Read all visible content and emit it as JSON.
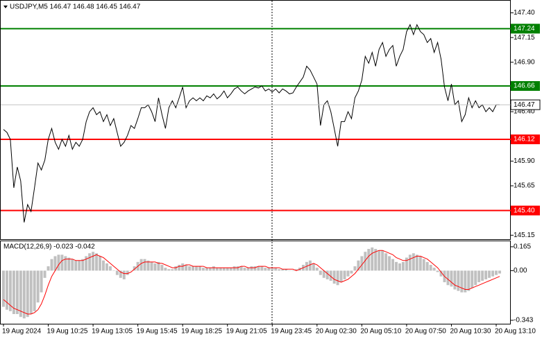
{
  "chart_data": [
    {
      "type": "line",
      "title": "USDJPY,M5  146.47 146.48 146.45 146.47",
      "color": "#000000",
      "values": [
        146.22,
        146.19,
        146.12,
        145.63,
        145.84,
        145.7,
        145.28,
        145.46,
        145.39,
        145.63,
        145.88,
        145.81,
        145.91,
        146.12,
        146.23,
        146.09,
        146.02,
        146.12,
        146.05,
        146.16,
        146.02,
        146.09,
        146.05,
        146.12,
        146.3,
        146.4,
        146.44,
        146.37,
        146.4,
        146.3,
        146.37,
        146.26,
        146.33,
        146.19,
        146.05,
        146.09,
        146.16,
        146.26,
        146.23,
        146.33,
        146.44,
        146.44,
        146.47,
        146.4,
        146.3,
        146.54,
        146.37,
        146.23,
        146.44,
        146.51,
        146.44,
        146.54,
        146.65,
        146.44,
        146.51,
        146.54,
        146.51,
        146.54,
        146.51,
        146.56,
        146.54,
        146.58,
        146.53,
        146.56,
        146.61,
        146.54,
        146.58,
        146.63,
        146.65,
        146.61,
        146.58,
        146.61,
        146.63,
        146.65,
        146.64,
        146.66,
        146.61,
        146.63,
        146.6,
        146.63,
        146.59,
        146.63,
        146.61,
        146.58,
        146.59,
        146.65,
        146.7,
        146.75,
        146.86,
        146.82,
        146.75,
        146.68,
        146.26,
        146.47,
        146.51,
        146.4,
        146.23,
        146.05,
        146.3,
        146.3,
        146.4,
        146.33,
        146.54,
        146.61,
        146.72,
        146.96,
        146.89,
        147.0,
        146.86,
        147.03,
        147.1,
        146.96,
        147.03,
        147.07,
        146.86,
        146.96,
        147.03,
        147.21,
        147.28,
        147.18,
        147.28,
        147.21,
        147.18,
        147.1,
        147.14,
        147.0,
        147.1,
        146.93,
        146.65,
        146.51,
        146.68,
        146.47,
        146.51,
        146.3,
        146.37,
        146.54,
        146.44,
        146.51,
        146.44,
        146.47,
        146.4,
        146.44,
        146.4,
        146.47,
        146.47
      ],
      "ylim": [
        145.11,
        147.53
      ],
      "yticks": [
        {
          "value": 147.4,
          "label": "147.40"
        },
        147.15,
        {
          "value": 146.9,
          "label": "146.90"
        },
        {
          "value": 146.4,
          "label": "146.40"
        },
        {
          "value": 145.9,
          "label": "145.90"
        },
        145.65,
        145.15
      ],
      "levels": {
        "values": [
          147.24,
          146.66,
          146.12,
          145.4
        ],
        "value_labels": [
          "147.24",
          "146.66",
          "146.12",
          "145.40"
        ],
        "colors": [
          "#008000",
          "#008000",
          "#ff0000",
          "#ff0000"
        ]
      },
      "last_price": 146.47
    },
    {
      "type": "macd",
      "title": "MACD(12,26,9) -0.023 -0.042",
      "categories": [
        "19 Aug 2024",
        null,
        null,
        null,
        null,
        null,
        null,
        null,
        null,
        null,
        null,
        null,
        null,
        "19 Aug 10:25",
        null,
        null,
        null,
        null,
        null,
        null,
        null,
        null,
        null,
        null,
        null,
        null,
        "19 Aug 13:05",
        null,
        null,
        null,
        null,
        null,
        null,
        null,
        null,
        null,
        null,
        null,
        null,
        "19 Aug 15:45",
        null,
        null,
        null,
        null,
        null,
        null,
        null,
        null,
        null,
        null,
        null,
        null,
        "19 Aug 18:25",
        null,
        null,
        null,
        null,
        null,
        null,
        null,
        null,
        null,
        null,
        null,
        null,
        "19 Aug 21:05",
        null,
        null,
        null,
        null,
        null,
        null,
        null,
        null,
        null,
        null,
        null,
        null,
        "19 Aug 23:45",
        null,
        null,
        null,
        null,
        null,
        null,
        null,
        null,
        null,
        null,
        null,
        null,
        "20 Aug 02:30",
        null,
        null,
        null,
        null,
        null,
        null,
        null,
        null,
        null,
        null,
        null,
        null,
        "20 Aug 05:10",
        null,
        null,
        null,
        null,
        null,
        null,
        null,
        null,
        null,
        null,
        null,
        null,
        "20 Aug 07:50",
        null,
        null,
        null,
        null,
        null,
        null,
        null,
        null,
        null,
        null,
        null,
        null,
        "20 Aug 10:30",
        null,
        null,
        null,
        null,
        null,
        null,
        null,
        null,
        null,
        null,
        null,
        null,
        "20 Aug 13:10",
        null
      ],
      "histogram": {
        "color": "#c0c0c0",
        "values": [
          -0.25,
          -0.27,
          -0.28,
          -0.3,
          -0.3,
          -0.32,
          -0.33,
          -0.32,
          -0.3,
          -0.28,
          -0.22,
          -0.15,
          -0.05,
          0.03,
          0.08,
          0.1,
          0.11,
          0.11,
          0.1,
          0.09,
          0.08,
          0.07,
          0.07,
          0.08,
          0.1,
          0.12,
          0.13,
          0.12,
          0.1,
          0.07,
          0.05,
          0.03,
          0,
          -0.03,
          -0.05,
          -0.06,
          -0.03,
          0,
          0.03,
          0.06,
          0.08,
          0.08,
          0.07,
          0.06,
          0.05,
          0.06,
          0.04,
          0.02,
          0.01,
          0.01,
          0.03,
          0.04,
          0.05,
          0.04,
          0.03,
          0.03,
          0.03,
          0.03,
          0.02,
          0.02,
          0.02,
          0.03,
          0.02,
          0.02,
          0.02,
          0.02,
          0.02,
          0.03,
          0.03,
          0.03,
          0.02,
          0.02,
          0.03,
          0.03,
          0.03,
          0.03,
          0.02,
          0.02,
          0.02,
          0.02,
          0.01,
          0.01,
          0.01,
          0,
          0,
          0.01,
          0.02,
          0.04,
          0.06,
          0.07,
          0.05,
          0.02,
          -0.03,
          -0.05,
          -0.06,
          -0.07,
          -0.09,
          -0.1,
          -0.08,
          -0.06,
          -0.04,
          -0.02,
          0.03,
          0.07,
          0.1,
          0.13,
          0.15,
          0.16,
          0.15,
          0.14,
          0.14,
          0.12,
          0.1,
          0.08,
          0.06,
          0.05,
          0.06,
          0.09,
          0.11,
          0.12,
          0.11,
          0.1,
          0.08,
          0.06,
          0.04,
          0.02,
          -0.01,
          -0.04,
          -0.08,
          -0.1,
          -0.11,
          -0.13,
          -0.14,
          -0.15,
          -0.15,
          -0.14,
          -0.12,
          -0.1,
          -0.08,
          -0.07,
          -0.06,
          -0.05,
          -0.04,
          -0.03,
          -0.02
        ]
      },
      "signal": {
        "color": "#ff0000",
        "values": [
          -0.2,
          -0.22,
          -0.24,
          -0.26,
          -0.27,
          -0.28,
          -0.29,
          -0.3,
          -0.3,
          -0.29,
          -0.27,
          -0.23,
          -0.17,
          -0.1,
          -0.04,
          0,
          0.04,
          0.07,
          0.08,
          0.08,
          0.08,
          0.07,
          0.07,
          0.07,
          0.08,
          0.09,
          0.1,
          0.11,
          0.1,
          0.09,
          0.07,
          0.05,
          0.03,
          0.01,
          -0.01,
          -0.02,
          -0.02,
          -0.01,
          0.01,
          0.03,
          0.05,
          0.06,
          0.06,
          0.06,
          0.06,
          0.05,
          0.05,
          0.04,
          0.03,
          0.02,
          0.02,
          0.03,
          0.03,
          0.04,
          0.04,
          0.03,
          0.03,
          0.03,
          0.03,
          0.02,
          0.02,
          0.02,
          0.02,
          0.02,
          0.02,
          0.02,
          0.02,
          0.02,
          0.02,
          0.03,
          0.03,
          0.02,
          0.02,
          0.02,
          0.03,
          0.03,
          0.03,
          0.02,
          0.02,
          0.02,
          0.02,
          0.01,
          0.01,
          0.01,
          0.01,
          0,
          0.01,
          0.02,
          0.03,
          0.04,
          0.05,
          0.04,
          0.02,
          0,
          -0.02,
          -0.04,
          -0.06,
          -0.07,
          -0.08,
          -0.07,
          -0.06,
          -0.04,
          -0.02,
          0.01,
          0.04,
          0.07,
          0.1,
          0.12,
          0.13,
          0.14,
          0.14,
          0.13,
          0.12,
          0.11,
          0.09,
          0.08,
          0.07,
          0.07,
          0.08,
          0.09,
          0.1,
          0.1,
          0.09,
          0.08,
          0.06,
          0.04,
          0.02,
          -0.01,
          -0.04,
          -0.06,
          -0.08,
          -0.1,
          -0.11,
          -0.12,
          -0.13,
          -0.13,
          -0.12,
          -0.11,
          -0.1,
          -0.09,
          -0.08,
          -0.07,
          -0.06,
          -0.05,
          -0.04
        ]
      },
      "ylim": [
        -0.367,
        0.203
      ],
      "yticks": [
        0.165,
        {
          "value": 0,
          "label": "0.00"
        },
        -0.343
      ]
    }
  ]
}
